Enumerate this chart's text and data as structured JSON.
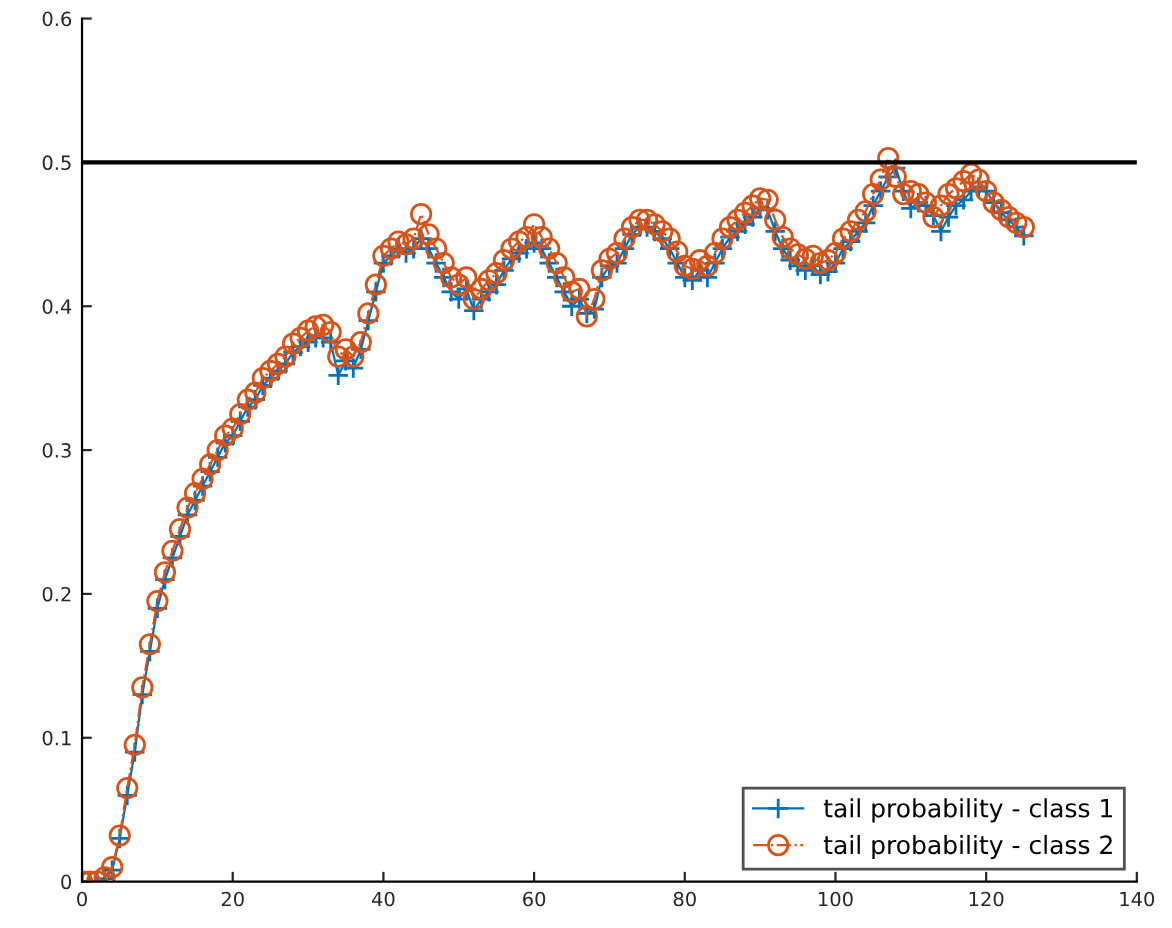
{
  "chart_data": {
    "type": "line",
    "x": [
      0,
      1,
      2,
      3,
      4,
      5,
      6,
      7,
      8,
      9,
      10,
      11,
      12,
      13,
      14,
      15,
      16,
      17,
      18,
      19,
      20,
      21,
      22,
      23,
      24,
      25,
      26,
      27,
      28,
      29,
      30,
      31,
      32,
      33,
      34,
      35,
      36,
      37,
      38,
      39,
      40,
      41,
      42,
      43,
      44,
      45,
      46,
      47,
      48,
      49,
      50,
      51,
      52,
      53,
      54,
      55,
      56,
      57,
      58,
      59,
      60,
      61,
      62,
      63,
      64,
      65,
      66,
      67,
      68,
      69,
      70,
      71,
      72,
      73,
      74,
      75,
      76,
      77,
      78,
      79,
      80,
      81,
      82,
      83,
      84,
      85,
      86,
      87,
      88,
      89,
      90,
      91,
      92,
      93,
      94,
      95,
      96,
      97,
      98,
      99,
      100,
      101,
      102,
      103,
      104,
      105,
      106,
      107,
      108,
      109,
      110,
      111,
      112,
      113,
      114,
      115,
      116,
      117,
      118,
      119,
      120,
      121,
      122,
      123,
      124,
      125
    ],
    "series": [
      {
        "name": "tail probability - class 1",
        "color": "#0072bd",
        "marker": "cross",
        "line_style": "solid",
        "values": [
          0,
          0,
          0,
          0.002,
          0.008,
          0.03,
          0.06,
          0.09,
          0.13,
          0.16,
          0.19,
          0.21,
          0.225,
          0.24,
          0.255,
          0.265,
          0.275,
          0.285,
          0.295,
          0.305,
          0.31,
          0.32,
          0.33,
          0.335,
          0.345,
          0.35,
          0.355,
          0.36,
          0.368,
          0.372,
          0.375,
          0.378,
          0.378,
          0.375,
          0.352,
          0.362,
          0.357,
          0.37,
          0.39,
          0.41,
          0.43,
          0.435,
          0.44,
          0.437,
          0.44,
          0.447,
          0.44,
          0.43,
          0.42,
          0.41,
          0.405,
          0.412,
          0.397,
          0.405,
          0.41,
          0.415,
          0.425,
          0.433,
          0.437,
          0.44,
          0.444,
          0.44,
          0.43,
          0.42,
          0.41,
          0.4,
          0.405,
          0.395,
          0.398,
          0.42,
          0.428,
          0.43,
          0.44,
          0.45,
          0.455,
          0.455,
          0.452,
          0.447,
          0.44,
          0.43,
          0.42,
          0.418,
          0.425,
          0.42,
          0.43,
          0.44,
          0.448,
          0.452,
          0.457,
          0.462,
          0.468,
          0.467,
          0.452,
          0.44,
          0.432,
          0.428,
          0.425,
          0.428,
          0.422,
          0.424,
          0.43,
          0.44,
          0.445,
          0.452,
          0.458,
          0.47,
          0.48,
          0.49,
          0.496,
          0.48,
          0.468,
          0.472,
          0.47,
          0.463,
          0.452,
          0.462,
          0.47,
          0.474,
          0.48,
          0.483,
          0.48,
          0.472,
          0.465,
          0.46,
          0.455,
          0.449
        ]
      },
      {
        "name": "tail probability - class 2",
        "color": "#d95319",
        "marker": "circle",
        "line_style": "dashed",
        "values": [
          0,
          0,
          0,
          0.003,
          0.01,
          0.032,
          0.065,
          0.095,
          0.135,
          0.165,
          0.195,
          0.215,
          0.23,
          0.245,
          0.26,
          0.27,
          0.28,
          0.29,
          0.3,
          0.31,
          0.315,
          0.325,
          0.335,
          0.34,
          0.35,
          0.355,
          0.36,
          0.365,
          0.374,
          0.378,
          0.383,
          0.386,
          0.387,
          0.382,
          0.365,
          0.37,
          0.365,
          0.375,
          0.395,
          0.415,
          0.435,
          0.44,
          0.445,
          0.443,
          0.447,
          0.464,
          0.45,
          0.44,
          0.43,
          0.42,
          0.415,
          0.42,
          0.405,
          0.412,
          0.418,
          0.423,
          0.432,
          0.44,
          0.445,
          0.448,
          0.457,
          0.448,
          0.44,
          0.43,
          0.42,
          0.41,
          0.412,
          0.393,
          0.405,
          0.425,
          0.433,
          0.437,
          0.447,
          0.455,
          0.46,
          0.46,
          0.457,
          0.452,
          0.447,
          0.438,
          0.428,
          0.426,
          0.432,
          0.428,
          0.437,
          0.447,
          0.455,
          0.46,
          0.465,
          0.47,
          0.475,
          0.474,
          0.46,
          0.448,
          0.44,
          0.436,
          0.433,
          0.435,
          0.43,
          0.432,
          0.437,
          0.447,
          0.452,
          0.46,
          0.466,
          0.478,
          0.488,
          0.503,
          0.49,
          0.478,
          0.48,
          0.478,
          0.472,
          0.462,
          0.47,
          0.478,
          0.482,
          0.487,
          0.492,
          0.488,
          0.48,
          0.472,
          0.467,
          0.462,
          0.458,
          0.455
        ]
      }
    ],
    "ref_lines": [
      {
        "axis": "y",
        "value": 0.5,
        "color": "#000000",
        "line_style": "solid"
      }
    ],
    "xlim": [
      0,
      140
    ],
    "xticks": [
      0,
      20,
      40,
      60,
      80,
      100,
      120,
      140
    ],
    "ylim": [
      0,
      0.6
    ],
    "yticks": [
      0,
      0.1,
      0.2,
      0.3,
      0.4,
      0.5,
      0.6
    ],
    "grid": false,
    "legend": "bottom right"
  }
}
